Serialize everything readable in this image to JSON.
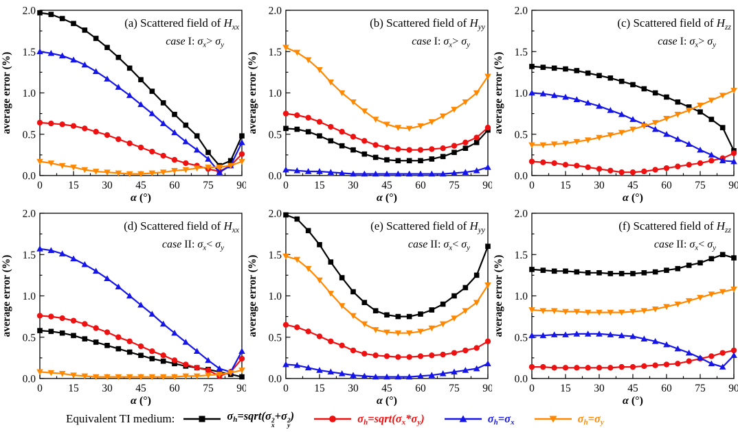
{
  "legend": {
    "prefix": "Equivalent TI medium:"
  },
  "colors": {
    "black": "#000000",
    "red": "#ee1111",
    "blue": "#1515e8",
    "orange": "#ff8800"
  },
  "series_defs": [
    {
      "key": "sqrt_sum",
      "color": "#000000",
      "marker": "square",
      "legend_text": "σh=sqrt(σx²+σy²)",
      "legend_parts": [
        {
          "t": "σ",
          "s": "t"
        },
        {
          "t": "h",
          "s": "sub"
        },
        {
          "t": "=sqrt(",
          "s": "t"
        },
        {
          "t": "σ",
          "s": "t"
        },
        {
          "t": "x|2",
          "s": "stk"
        },
        {
          "t": "+",
          "s": "t"
        },
        {
          "t": "σ",
          "s": "t"
        },
        {
          "t": "y|2",
          "s": "stk"
        },
        {
          "t": ")",
          "s": "t"
        }
      ]
    },
    {
      "key": "sqrt_prod",
      "color": "#ee1111",
      "marker": "circle",
      "legend_text": "σh=sqrt(σx*σy)",
      "legend_parts": [
        {
          "t": "σ",
          "s": "t"
        },
        {
          "t": "h",
          "s": "sub"
        },
        {
          "t": "=sqrt(",
          "s": "t"
        },
        {
          "t": "σ",
          "s": "t"
        },
        {
          "t": "x",
          "s": "sub"
        },
        {
          "t": "*",
          "s": "t"
        },
        {
          "t": "σ",
          "s": "t"
        },
        {
          "t": "y",
          "s": "sub"
        },
        {
          "t": ")",
          "s": "t"
        }
      ]
    },
    {
      "key": "sigma_x",
      "color": "#1515e8",
      "marker": "triangle-up",
      "legend_text": "σh=σx",
      "legend_parts": [
        {
          "t": "σ",
          "s": "t"
        },
        {
          "t": "h",
          "s": "sub"
        },
        {
          "t": "=",
          "s": "t"
        },
        {
          "t": "σ",
          "s": "t"
        },
        {
          "t": "x",
          "s": "sub"
        }
      ]
    },
    {
      "key": "sigma_y",
      "color": "#ff8800",
      "marker": "triangle-down",
      "legend_text": "σh=σy",
      "legend_parts": [
        {
          "t": "σ",
          "s": "t"
        },
        {
          "t": "h",
          "s": "sub"
        },
        {
          "t": "=",
          "s": "t"
        },
        {
          "t": "σ",
          "s": "t"
        },
        {
          "t": "y",
          "s": "sub"
        }
      ]
    }
  ],
  "axis": {
    "ylabel": "average error (%)",
    "xlabel_text": "α (°)",
    "xlabel_parts": [
      {
        "t": "α",
        "s": "bi"
      },
      {
        "t": " (°)",
        "s": "b"
      }
    ],
    "xticks": [
      0,
      15,
      30,
      45,
      60,
      75,
      90
    ],
    "ytick_labels": [
      "0.0",
      "0.5",
      "1.0",
      "1.5",
      "2.0"
    ],
    "yticks": [
      0,
      0.5,
      1,
      1.5,
      2
    ],
    "xlim": [
      0,
      90
    ],
    "ylim": [
      0,
      2
    ],
    "minor_x_step": 7.5,
    "minor_y_step": 0.25,
    "grid": false
  },
  "chart_data": [
    {
      "type": "line",
      "panel": "a",
      "title_text": "(a) Scattered field of Hxx",
      "case_text": "case I: σx> σy",
      "title_parts": [
        {
          "t": "(a) Scattered field of ",
          "s": "p"
        },
        {
          "t": "H",
          "s": "i"
        },
        {
          "t": "xx",
          "s": "is"
        }
      ],
      "case_parts": [
        {
          "t": "case",
          "s": "i"
        },
        {
          "t": " I: ",
          "s": "p"
        },
        {
          "t": "σ",
          "s": "i"
        },
        {
          "t": "x",
          "s": "is"
        },
        {
          "t": "> ",
          "s": "p"
        },
        {
          "t": "σ",
          "s": "i"
        },
        {
          "t": "y",
          "s": "is"
        }
      ],
      "x": [
        0,
        5,
        10,
        15,
        20,
        25,
        30,
        35,
        40,
        45,
        50,
        55,
        60,
        65,
        70,
        75,
        80,
        85,
        90
      ],
      "values": {
        "sqrt_sum": [
          1.97,
          1.95,
          1.9,
          1.84,
          1.76,
          1.66,
          1.55,
          1.43,
          1.3,
          1.16,
          1.02,
          0.88,
          0.74,
          0.61,
          0.48,
          0.28,
          0.12,
          0.18,
          0.48
        ],
        "sqrt_prod": [
          0.64,
          0.63,
          0.62,
          0.6,
          0.57,
          0.53,
          0.49,
          0.44,
          0.39,
          0.34,
          0.29,
          0.24,
          0.19,
          0.15,
          0.12,
          0.08,
          0.05,
          0.12,
          0.26
        ],
        "sigma_x": [
          1.5,
          1.48,
          1.45,
          1.4,
          1.34,
          1.26,
          1.17,
          1.07,
          0.97,
          0.86,
          0.75,
          0.63,
          0.52,
          0.41,
          0.31,
          0.2,
          0.04,
          0.12,
          0.4
        ],
        "sigma_y": [
          0.17,
          0.15,
          0.12,
          0.1,
          0.07,
          0.05,
          0.04,
          0.03,
          0.02,
          0.02,
          0.03,
          0.04,
          0.06,
          0.07,
          0.09,
          0.1,
          0.1,
          0.12,
          0.17
        ]
      }
    },
    {
      "type": "line",
      "panel": "b",
      "title_text": "(b) Scattered field of Hyy",
      "case_text": "case I: σx> σy",
      "title_parts": [
        {
          "t": "(b) Scattered field of ",
          "s": "p"
        },
        {
          "t": "H",
          "s": "i"
        },
        {
          "t": "yy",
          "s": "is"
        }
      ],
      "case_parts": [
        {
          "t": "case",
          "s": "i"
        },
        {
          "t": " I: ",
          "s": "p"
        },
        {
          "t": "σ",
          "s": "i"
        },
        {
          "t": "x",
          "s": "is"
        },
        {
          "t": "> ",
          "s": "p"
        },
        {
          "t": "σ",
          "s": "i"
        },
        {
          "t": "y",
          "s": "is"
        }
      ],
      "x": [
        0,
        5,
        10,
        15,
        20,
        25,
        30,
        35,
        40,
        45,
        50,
        55,
        60,
        65,
        70,
        75,
        80,
        85,
        90
      ],
      "values": {
        "sqrt_sum": [
          0.57,
          0.56,
          0.53,
          0.48,
          0.42,
          0.36,
          0.31,
          0.26,
          0.22,
          0.19,
          0.18,
          0.18,
          0.18,
          0.2,
          0.23,
          0.28,
          0.33,
          0.4,
          0.55
        ],
        "sqrt_prod": [
          0.75,
          0.73,
          0.7,
          0.65,
          0.59,
          0.53,
          0.47,
          0.42,
          0.37,
          0.34,
          0.32,
          0.31,
          0.31,
          0.32,
          0.33,
          0.36,
          0.4,
          0.46,
          0.58
        ],
        "sigma_x": [
          0.07,
          0.06,
          0.05,
          0.05,
          0.04,
          0.03,
          0.02,
          0.02,
          0.02,
          0.02,
          0.02,
          0.02,
          0.02,
          0.02,
          0.02,
          0.03,
          0.04,
          0.06,
          0.1
        ],
        "sigma_y": [
          1.55,
          1.49,
          1.4,
          1.28,
          1.13,
          1.0,
          0.89,
          0.78,
          0.68,
          0.62,
          0.58,
          0.57,
          0.6,
          0.65,
          0.72,
          0.8,
          0.89,
          1.0,
          1.2
        ]
      }
    },
    {
      "type": "line",
      "panel": "c",
      "title_text": "(c) Scattered field of Hzz",
      "case_text": "case I: σx> σy",
      "title_parts": [
        {
          "t": "(c) Scattered field of ",
          "s": "p"
        },
        {
          "t": "H",
          "s": "i"
        },
        {
          "t": "zz",
          "s": "is"
        }
      ],
      "case_parts": [
        {
          "t": "case",
          "s": "i"
        },
        {
          "t": " I: ",
          "s": "p"
        },
        {
          "t": "σ",
          "s": "i"
        },
        {
          "t": "x",
          "s": "is"
        },
        {
          "t": "> ",
          "s": "p"
        },
        {
          "t": "σ",
          "s": "i"
        },
        {
          "t": "y",
          "s": "is"
        }
      ],
      "x": [
        0,
        5,
        10,
        15,
        20,
        25,
        30,
        35,
        40,
        45,
        50,
        55,
        60,
        65,
        70,
        75,
        80,
        85,
        90
      ],
      "values": {
        "sqrt_sum": [
          1.32,
          1.31,
          1.3,
          1.29,
          1.27,
          1.24,
          1.21,
          1.18,
          1.14,
          1.1,
          1.05,
          1.0,
          0.95,
          0.89,
          0.83,
          0.77,
          0.68,
          0.58,
          0.3
        ],
        "sqrt_prod": [
          0.17,
          0.16,
          0.15,
          0.13,
          0.12,
          0.1,
          0.08,
          0.06,
          0.04,
          0.04,
          0.05,
          0.07,
          0.09,
          0.11,
          0.13,
          0.15,
          0.18,
          0.21,
          0.27
        ],
        "sigma_x": [
          1.0,
          0.99,
          0.97,
          0.95,
          0.92,
          0.88,
          0.84,
          0.79,
          0.74,
          0.68,
          0.62,
          0.56,
          0.5,
          0.44,
          0.38,
          0.31,
          0.25,
          0.18,
          0.17
        ],
        "sigma_y": [
          0.37,
          0.37,
          0.38,
          0.39,
          0.41,
          0.43,
          0.46,
          0.49,
          0.52,
          0.56,
          0.6,
          0.64,
          0.69,
          0.74,
          0.79,
          0.85,
          0.91,
          0.97,
          1.03
        ]
      }
    },
    {
      "type": "line",
      "panel": "d",
      "title_text": "(d) Scattered field of Hxx",
      "case_text": "case II: σx< σy",
      "title_parts": [
        {
          "t": "(d) Scattered field of ",
          "s": "p"
        },
        {
          "t": "H",
          "s": "i"
        },
        {
          "t": "xx",
          "s": "is"
        }
      ],
      "case_parts": [
        {
          "t": "case",
          "s": "i"
        },
        {
          "t": " II: ",
          "s": "p"
        },
        {
          "t": "σ",
          "s": "i"
        },
        {
          "t": "x",
          "s": "is"
        },
        {
          "t": "< ",
          "s": "p"
        },
        {
          "t": "σ",
          "s": "i"
        },
        {
          "t": "y",
          "s": "is"
        }
      ],
      "x": [
        0,
        5,
        10,
        15,
        20,
        25,
        30,
        35,
        40,
        45,
        50,
        55,
        60,
        65,
        70,
        75,
        80,
        85,
        90
      ],
      "values": {
        "sqrt_sum": [
          0.58,
          0.57,
          0.55,
          0.52,
          0.48,
          0.44,
          0.4,
          0.36,
          0.32,
          0.28,
          0.24,
          0.21,
          0.18,
          0.15,
          0.13,
          0.11,
          0.08,
          0.05,
          0.02
        ],
        "sqrt_prod": [
          0.76,
          0.75,
          0.73,
          0.7,
          0.66,
          0.61,
          0.56,
          0.5,
          0.45,
          0.39,
          0.33,
          0.28,
          0.22,
          0.17,
          0.13,
          0.1,
          0.03,
          0.08,
          0.24
        ],
        "sigma_x": [
          1.57,
          1.55,
          1.51,
          1.45,
          1.38,
          1.3,
          1.21,
          1.11,
          1.0,
          0.89,
          0.78,
          0.66,
          0.55,
          0.44,
          0.33,
          0.22,
          0.12,
          0.08,
          0.33
        ],
        "sigma_y": [
          0.08,
          0.07,
          0.06,
          0.04,
          0.03,
          0.02,
          0.02,
          0.02,
          0.02,
          0.02,
          0.02,
          0.02,
          0.02,
          0.03,
          0.03,
          0.04,
          0.05,
          0.07,
          0.1
        ]
      }
    },
    {
      "type": "line",
      "panel": "e",
      "title_text": "(e) Scattered field of Hyy",
      "case_text": "case II: σx< σy",
      "title_parts": [
        {
          "t": "(e) Scattered field of ",
          "s": "p"
        },
        {
          "t": "H",
          "s": "i"
        },
        {
          "t": "yy",
          "s": "is"
        }
      ],
      "case_parts": [
        {
          "t": "case",
          "s": "i"
        },
        {
          "t": " II: ",
          "s": "p"
        },
        {
          "t": "σ",
          "s": "i"
        },
        {
          "t": "x",
          "s": "is"
        },
        {
          "t": "< ",
          "s": "p"
        },
        {
          "t": "σ",
          "s": "i"
        },
        {
          "t": "y",
          "s": "is"
        }
      ],
      "x": [
        0,
        5,
        10,
        15,
        20,
        25,
        30,
        35,
        40,
        45,
        50,
        55,
        60,
        65,
        70,
        75,
        80,
        85,
        90
      ],
      "values": {
        "sqrt_sum": [
          1.98,
          1.93,
          1.79,
          1.62,
          1.41,
          1.22,
          1.05,
          0.92,
          0.82,
          0.77,
          0.75,
          0.75,
          0.78,
          0.83,
          0.9,
          1.0,
          1.1,
          1.25,
          1.6
        ],
        "sqrt_prod": [
          0.65,
          0.62,
          0.57,
          0.51,
          0.45,
          0.4,
          0.34,
          0.3,
          0.28,
          0.27,
          0.26,
          0.26,
          0.27,
          0.28,
          0.29,
          0.31,
          0.34,
          0.37,
          0.45
        ],
        "sigma_x": [
          0.17,
          0.16,
          0.13,
          0.1,
          0.08,
          0.06,
          0.04,
          0.03,
          0.02,
          0.02,
          0.02,
          0.02,
          0.03,
          0.04,
          0.06,
          0.08,
          0.1,
          0.12,
          0.18
        ],
        "sigma_y": [
          1.48,
          1.44,
          1.33,
          1.19,
          1.03,
          0.88,
          0.76,
          0.66,
          0.59,
          0.56,
          0.55,
          0.55,
          0.57,
          0.61,
          0.66,
          0.73,
          0.82,
          0.92,
          1.13
        ]
      }
    },
    {
      "type": "line",
      "panel": "f",
      "title_text": "(f) Scattered field of Hzz",
      "case_text": "case II: σx< σy",
      "title_parts": [
        {
          "t": "(f) Scattered field of ",
          "s": "p"
        },
        {
          "t": "H",
          "s": "i"
        },
        {
          "t": "zz",
          "s": "is"
        }
      ],
      "case_parts": [
        {
          "t": "case",
          "s": "i"
        },
        {
          "t": " II: ",
          "s": "p"
        },
        {
          "t": "σ",
          "s": "i"
        },
        {
          "t": "x",
          "s": "is"
        },
        {
          "t": "< ",
          "s": "p"
        },
        {
          "t": "σ",
          "s": "i"
        },
        {
          "t": "y",
          "s": "is"
        }
      ],
      "x": [
        0,
        5,
        10,
        15,
        20,
        25,
        30,
        35,
        40,
        45,
        50,
        55,
        60,
        65,
        70,
        75,
        80,
        85,
        90
      ],
      "values": {
        "sqrt_sum": [
          1.32,
          1.31,
          1.3,
          1.3,
          1.29,
          1.28,
          1.28,
          1.27,
          1.27,
          1.27,
          1.28,
          1.29,
          1.31,
          1.33,
          1.37,
          1.4,
          1.45,
          1.5,
          1.46
        ],
        "sqrt_prod": [
          0.14,
          0.14,
          0.13,
          0.13,
          0.13,
          0.13,
          0.13,
          0.13,
          0.14,
          0.14,
          0.15,
          0.16,
          0.17,
          0.18,
          0.21,
          0.24,
          0.27,
          0.31,
          0.34
        ],
        "sigma_x": [
          0.52,
          0.52,
          0.53,
          0.53,
          0.54,
          0.54,
          0.54,
          0.53,
          0.52,
          0.51,
          0.48,
          0.45,
          0.41,
          0.36,
          0.31,
          0.25,
          0.18,
          0.14,
          0.28
        ],
        "sigma_y": [
          0.83,
          0.82,
          0.82,
          0.81,
          0.81,
          0.8,
          0.8,
          0.8,
          0.8,
          0.81,
          0.82,
          0.84,
          0.87,
          0.9,
          0.94,
          0.98,
          1.02,
          1.05,
          1.08
        ]
      }
    }
  ]
}
